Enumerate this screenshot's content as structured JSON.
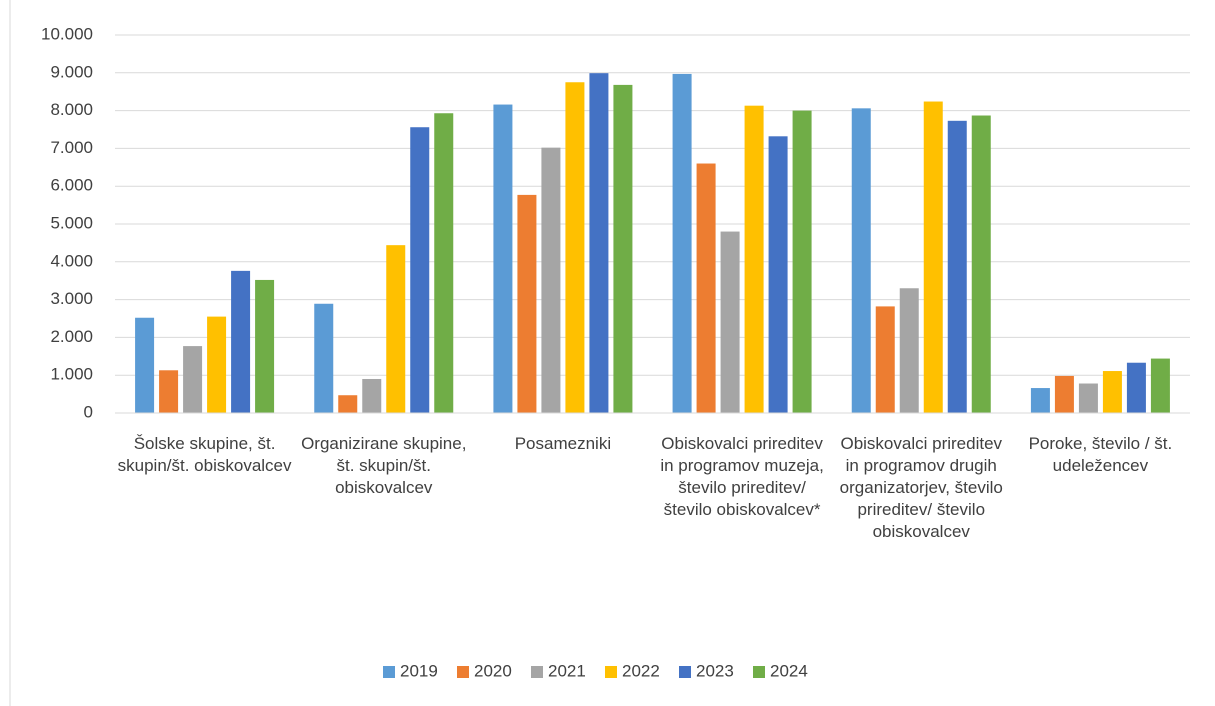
{
  "chart_data": {
    "type": "bar",
    "categories": [
      "Šolske skupine, št. skupin/št. obiskovalcev",
      "Organizirane skupine, št. skupin/št. obiskovalcev",
      "Posamezniki",
      "Obiskovalci prireditev in programov muzeja, število prireditev/ število obiskovalcev*",
      "Obiskovalci prireditev in programov drugih organizatorjev, število prireditev/ število obiskovalcev",
      "Poroke, število / št. udeležencev"
    ],
    "series": [
      {
        "name": "2019",
        "color": "#5b9bd5",
        "values": [
          2520,
          2890,
          8160,
          8970,
          8060,
          660
        ]
      },
      {
        "name": "2020",
        "color": "#ed7d31",
        "values": [
          1130,
          470,
          5770,
          6600,
          2820,
          980
        ]
      },
      {
        "name": "2021",
        "color": "#a5a5a5",
        "values": [
          1770,
          900,
          7020,
          4800,
          3300,
          780
        ]
      },
      {
        "name": "2022",
        "color": "#ffc000",
        "values": [
          2550,
          4440,
          8750,
          8130,
          8240,
          1110
        ]
      },
      {
        "name": "2023",
        "color": "#4472c4",
        "values": [
          3760,
          7560,
          8990,
          7320,
          7730,
          1330
        ]
      },
      {
        "name": "2024",
        "color": "#70ad47",
        "values": [
          3520,
          7930,
          8680,
          8000,
          7870,
          1440
        ]
      }
    ],
    "ylim": [
      0,
      10000
    ],
    "yticks": [
      0,
      {
        "value": 1000,
        "label": "1.000"
      },
      {
        "value": 2000,
        "label": "2.000"
      },
      {
        "value": 3000,
        "label": "3.000"
      },
      {
        "value": 4000,
        "label": "4.000"
      },
      {
        "value": 5000,
        "label": "5.000"
      },
      {
        "value": 6000,
        "label": "6.000"
      },
      {
        "value": 7000,
        "label": "7.000"
      },
      {
        "value": 8000,
        "label": "8.000"
      },
      {
        "value": 9000,
        "label": "9.000"
      },
      {
        "value": 10000,
        "label": "10.000"
      }
    ],
    "grid": true,
    "legend": "bottom"
  }
}
